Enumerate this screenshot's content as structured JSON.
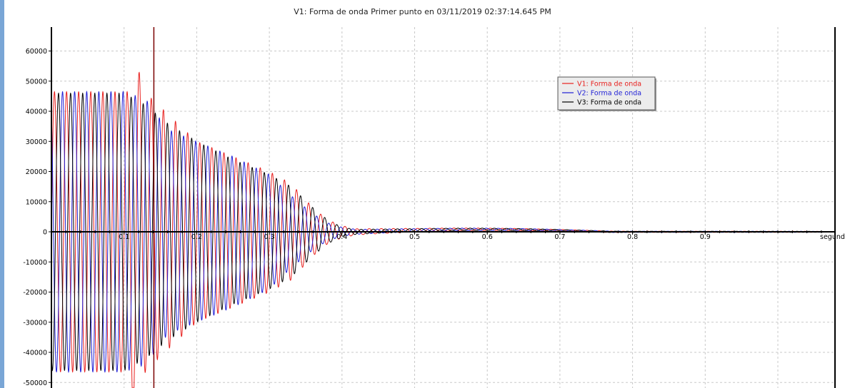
{
  "title": "V1: Forma de onda Primer punto en 03/11/2019 02:37:14.645 PM",
  "chart_data": {
    "type": "line",
    "title": "V1: Forma de onda Primer punto en 03/11/2019 02:37:14.645 PM",
    "xlabel": "segundo",
    "ylabel": "",
    "xlim": [
      0,
      1.08
    ],
    "ylim": [
      -52000,
      68000
    ],
    "x_ticks": [
      0,
      0.1,
      0.2,
      0.3,
      0.4,
      0.5,
      0.6,
      0.7,
      0.8,
      0.9
    ],
    "x_tick_labels": [
      "0",
      "0.1",
      "0.2",
      "0.3",
      "0.4",
      "0.5",
      "0.6",
      "0.7",
      "0.8",
      "0.9"
    ],
    "y_ticks": [
      -50000,
      -40000,
      -30000,
      -20000,
      -10000,
      0,
      10000,
      20000,
      30000,
      40000,
      50000,
      60000
    ],
    "y_tick_labels": [
      "-50000",
      "-40000",
      "-30000",
      "-20000",
      "-10000",
      "0",
      "10000",
      "20000",
      "30000",
      "40000",
      "50000",
      "60000"
    ],
    "grid": true,
    "legend_position": "upper-right",
    "frequency_hz": 60,
    "cursor_x": 0.141,
    "series": [
      {
        "name": "V1: Forma de onda",
        "color": "#e8201e",
        "phase_deg": 0,
        "envelope": [
          [
            0,
            46500
          ],
          [
            0.105,
            46500
          ],
          [
            0.11,
            61000
          ],
          [
            0.13,
            46000
          ],
          [
            0.2,
            30000
          ],
          [
            0.25,
            25000
          ],
          [
            0.3,
            20000
          ],
          [
            0.33,
            16000
          ],
          [
            0.36,
            8000
          ],
          [
            0.38,
            4000
          ],
          [
            0.4,
            2000
          ],
          [
            0.42,
            1000
          ],
          [
            0.5,
            600
          ],
          [
            0.6,
            400
          ],
          [
            0.7,
            300
          ],
          [
            0.8,
            200
          ],
          [
            0.9,
            200
          ],
          [
            1.06,
            150
          ]
        ]
      },
      {
        "name": "V2: Forma de onda",
        "color": "#1f1fd6",
        "phase_deg": 120,
        "envelope": [
          [
            0,
            46500
          ],
          [
            0.1,
            46500
          ],
          [
            0.13,
            44000
          ],
          [
            0.16,
            34000
          ],
          [
            0.2,
            30000
          ],
          [
            0.25,
            25000
          ],
          [
            0.3,
            19000
          ],
          [
            0.33,
            12000
          ],
          [
            0.36,
            6000
          ],
          [
            0.38,
            3000
          ],
          [
            0.4,
            1500
          ],
          [
            0.42,
            800
          ],
          [
            0.5,
            500
          ],
          [
            0.6,
            400
          ],
          [
            0.7,
            300
          ],
          [
            0.8,
            200
          ],
          [
            0.9,
            200
          ],
          [
            1.06,
            150
          ]
        ]
      },
      {
        "name": "V3: Forma de onda",
        "color": "#000000",
        "phase_deg": 240,
        "envelope": [
          [
            0,
            46000
          ],
          [
            0.1,
            46000
          ],
          [
            0.13,
            42000
          ],
          [
            0.16,
            36000
          ],
          [
            0.2,
            30000
          ],
          [
            0.25,
            24000
          ],
          [
            0.3,
            19000
          ],
          [
            0.33,
            15000
          ],
          [
            0.36,
            8000
          ],
          [
            0.38,
            4000
          ],
          [
            0.4,
            1500
          ],
          [
            0.42,
            800
          ],
          [
            0.5,
            500
          ],
          [
            0.6,
            400
          ],
          [
            0.7,
            300
          ],
          [
            0.8,
            200
          ],
          [
            0.9,
            200
          ],
          [
            1.06,
            150
          ]
        ]
      }
    ]
  }
}
